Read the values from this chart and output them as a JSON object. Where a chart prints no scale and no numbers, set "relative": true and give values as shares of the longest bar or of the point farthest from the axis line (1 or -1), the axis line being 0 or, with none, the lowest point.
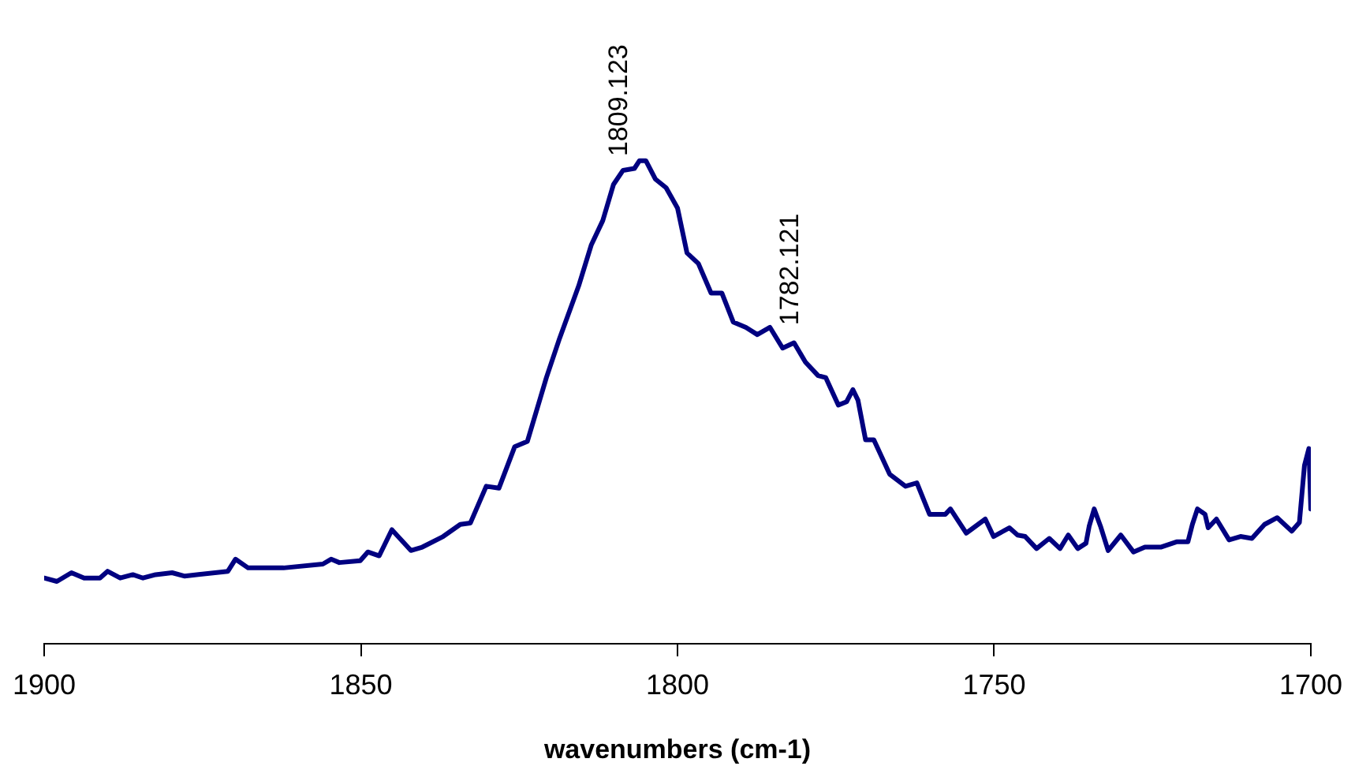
{
  "chart_data": {
    "type": "line",
    "relative": true,
    "xlabel": "wavenumbers (cm-1)",
    "xlim": [
      1900,
      1700
    ],
    "xticks": [
      1900,
      1850,
      1800,
      1750,
      1700
    ],
    "x": [
      1900,
      1898,
      1895.7,
      1893.7,
      1891.2,
      1890,
      1888,
      1886,
      1884.4,
      1882.4,
      1879.8,
      1877.8,
      1871,
      1869.8,
      1867.8,
      1862.2,
      1856,
      1854.7,
      1853.4,
      1850.1,
      1848.9,
      1847.1,
      1845.1,
      1842.1,
      1840.3,
      1837,
      1834.3,
      1832.7,
      1830.2,
      1828.2,
      1825.7,
      1823.7,
      1820.7,
      1818.6,
      1816.9,
      1815.6,
      1813.6,
      1811.8,
      1810.1,
      1808.6,
      1806.8,
      1806,
      1805,
      1803.5,
      1801.8,
      1800,
      1798.5,
      1796.7,
      1794.7,
      1793,
      1791.2,
      1789.2,
      1787.4,
      1785.4,
      1783.4,
      1781.6,
      1779.8,
      1777.8,
      1776.6,
      1774.6,
      1773.3,
      1772.3,
      1771.5,
      1770.3,
      1769,
      1766.5,
      1764,
      1762.2,
      1760.2,
      1757.7,
      1756.9,
      1754.4,
      1751.4,
      1750.1,
      1747.6,
      1746.3,
      1745.1,
      1743.3,
      1741.3,
      1739.6,
      1738.3,
      1736.8,
      1735.5,
      1735,
      1734.2,
      1733.2,
      1732,
      1730,
      1728,
      1726.2,
      1723.7,
      1721.2,
      1719.4,
      1718.7,
      1717.9,
      1716.7,
      1716.2,
      1714.9,
      1712.9,
      1711.1,
      1709.3,
      1707.3,
      1705.3,
      1703,
      1701.8,
      1701,
      1700.3,
      1700
    ],
    "series": [
      {
        "color": "#000080",
        "values": [
          0.136,
          0.129,
          0.147,
          0.136,
          0.136,
          0.15,
          0.136,
          0.143,
          0.136,
          0.143,
          0.147,
          0.14,
          0.15,
          0.175,
          0.157,
          0.157,
          0.165,
          0.175,
          0.168,
          0.172,
          0.19,
          0.182,
          0.236,
          0.193,
          0.2,
          0.222,
          0.247,
          0.25,
          0.326,
          0.322,
          0.408,
          0.419,
          0.551,
          0.633,
          0.694,
          0.741,
          0.826,
          0.876,
          0.951,
          0.98,
          0.984,
          1,
          1,
          0.962,
          0.944,
          0.902,
          0.809,
          0.787,
          0.726,
          0.726,
          0.666,
          0.655,
          0.64,
          0.655,
          0.612,
          0.623,
          0.583,
          0.555,
          0.551,
          0.494,
          0.501,
          0.526,
          0.504,
          0.422,
          0.422,
          0.351,
          0.326,
          0.333,
          0.268,
          0.268,
          0.279,
          0.229,
          0.258,
          0.222,
          0.24,
          0.225,
          0.222,
          0.197,
          0.218,
          0.197,
          0.225,
          0.197,
          0.208,
          0.243,
          0.279,
          0.243,
          0.193,
          0.225,
          0.19,
          0.2,
          0.2,
          0.211,
          0.211,
          0.247,
          0.279,
          0.268,
          0.24,
          0.258,
          0.215,
          0.222,
          0.218,
          0.247,
          0.261,
          0.233,
          0.251,
          0.369,
          0.404,
          0.279
        ]
      }
    ],
    "annotations": [
      {
        "text": "1809.123",
        "x": 1809.123,
        "y": 0.97
      },
      {
        "text": "1782.121",
        "x": 1782.121,
        "y": 0.62
      }
    ]
  }
}
